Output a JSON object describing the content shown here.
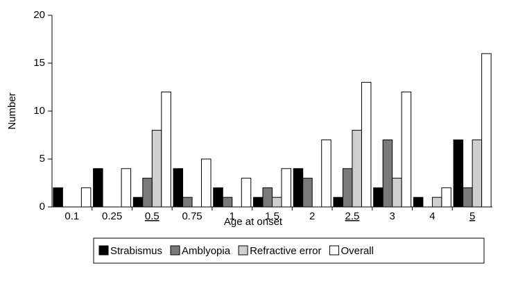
{
  "chart_data": {
    "type": "bar",
    "x_label": "Age at onset",
    "y_label": "Number",
    "categories": [
      "0.1",
      "0.25",
      "0.5",
      "0.75",
      "1",
      "1.5",
      "2",
      "2.5",
      "3",
      "4",
      "5"
    ],
    "underlined_categories": [
      2,
      7,
      10
    ],
    "series": [
      {
        "name": "Strabismus",
        "color": "#000000",
        "values": [
          2,
          4,
          1,
          4,
          2,
          1,
          4,
          1,
          2,
          1,
          7
        ]
      },
      {
        "name": "Amblyopia",
        "color": "#7a7a7a",
        "values": [
          0,
          0,
          3,
          1,
          1,
          2,
          3,
          4,
          7,
          0,
          2
        ]
      },
      {
        "name": "Refractive error",
        "color": "#cfcfcf",
        "values": [
          0,
          0,
          8,
          0,
          0,
          1,
          0,
          8,
          3,
          1,
          7
        ]
      },
      {
        "name": "Overall",
        "color": "#ffffff",
        "values": [
          2,
          4,
          12,
          5,
          3,
          4,
          7,
          13,
          12,
          2,
          16
        ]
      }
    ],
    "ylim": [
      0,
      20
    ],
    "yticks": [
      0,
      5,
      10,
      15,
      20
    ],
    "grid": false,
    "legend": "bottom"
  }
}
